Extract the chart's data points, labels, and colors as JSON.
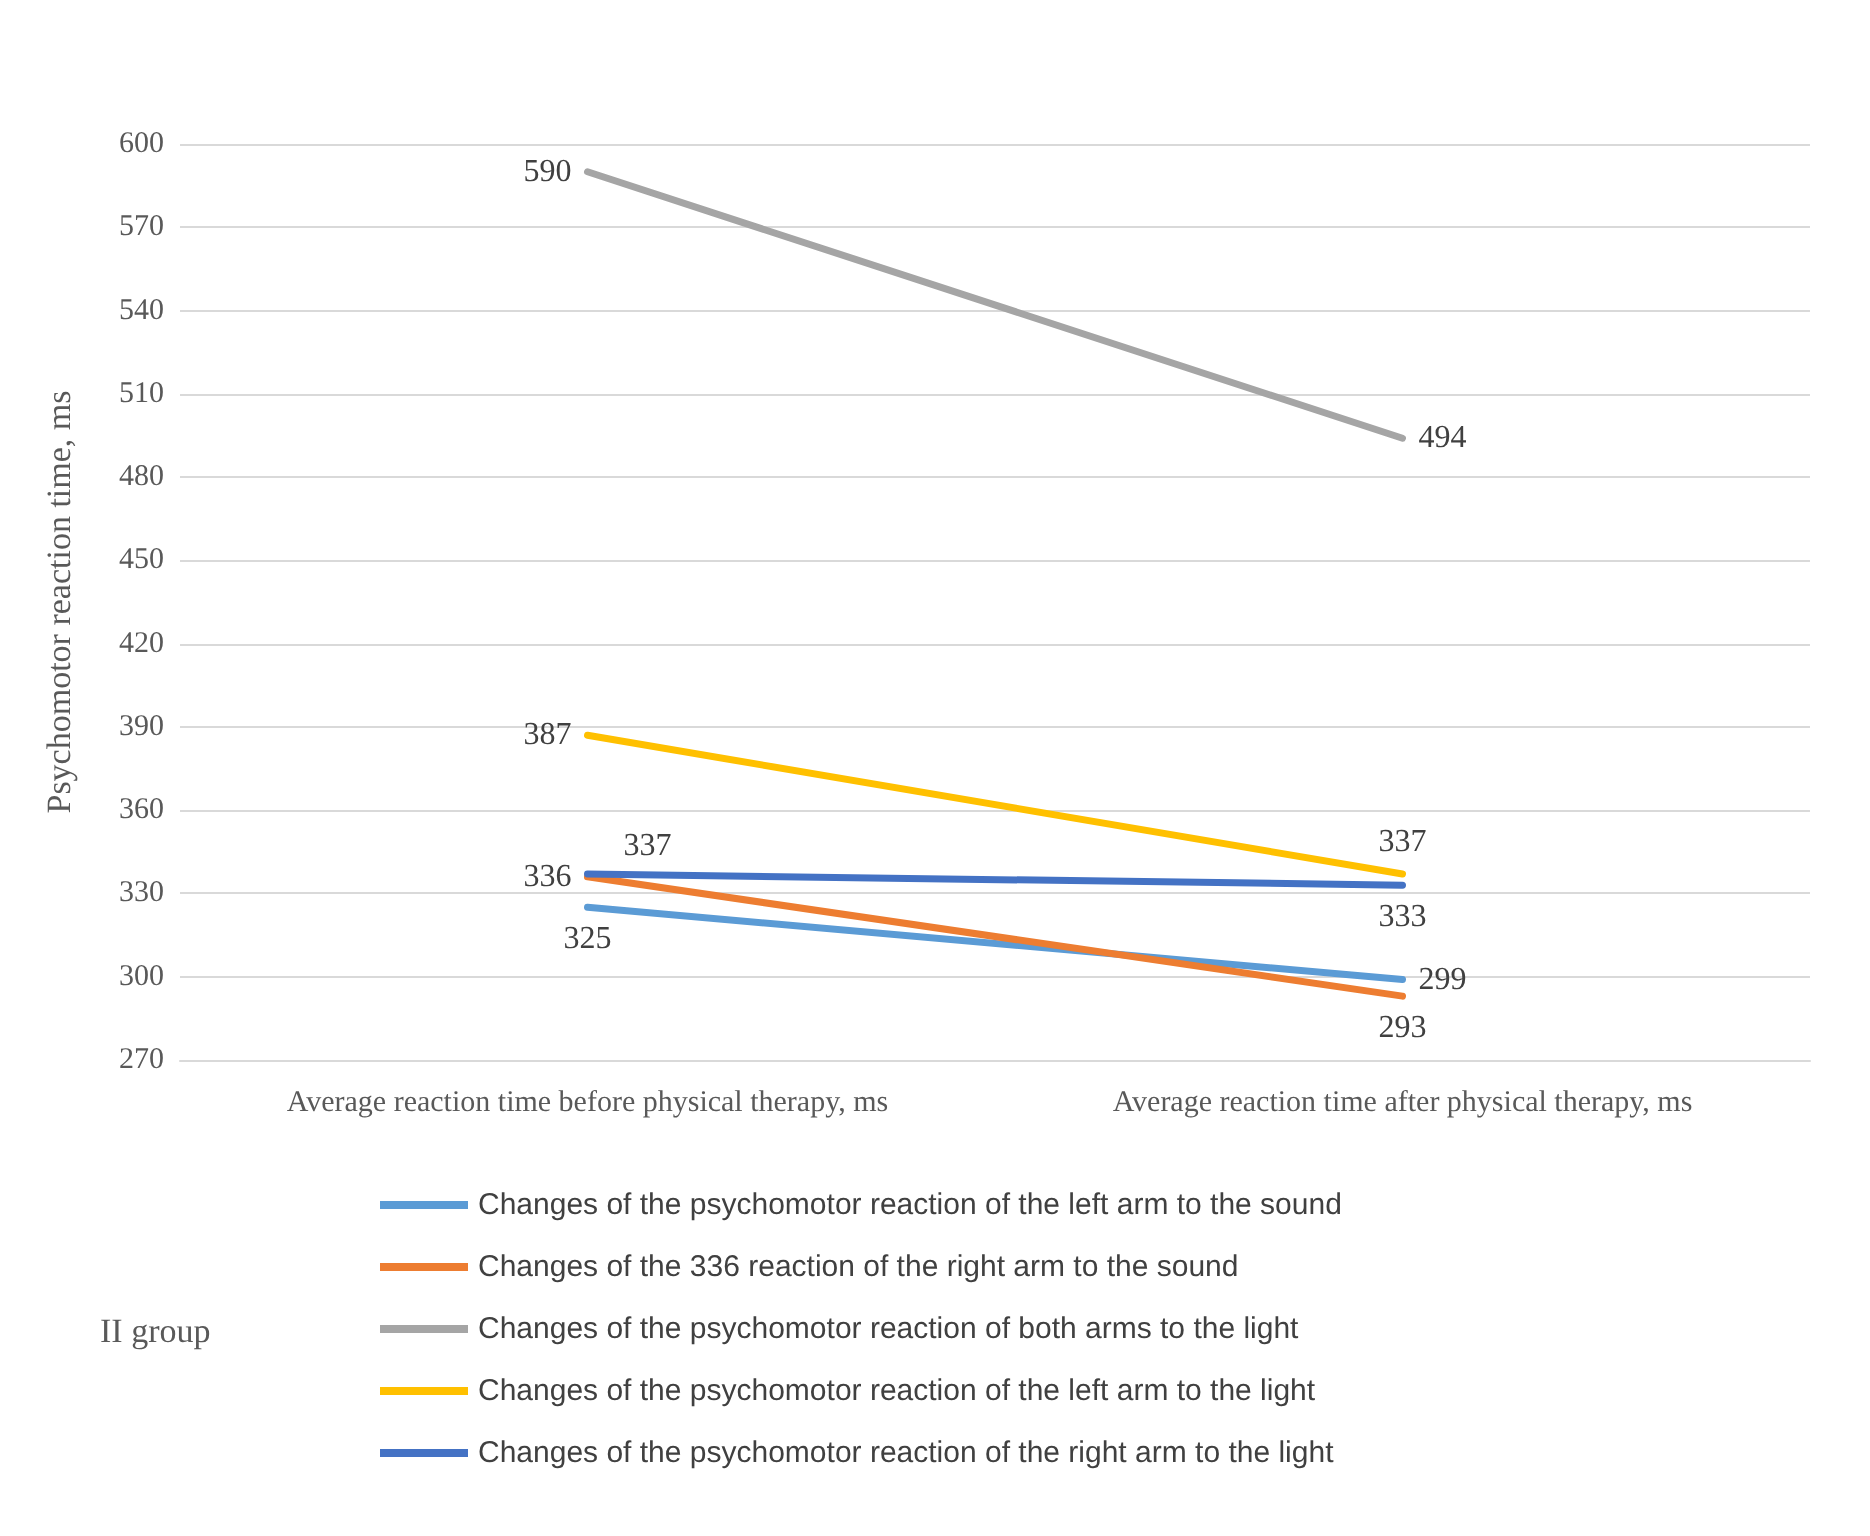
{
  "chart_data": {
    "type": "line",
    "ylabel": "Psychomotor reaction time, ms",
    "legend_title": "II group",
    "categories": [
      "Average reaction time before physical therapy, ms",
      "Average reaction time after physical therapy, ms"
    ],
    "series": [
      {
        "name": "Changes of the psychomotor reaction of the left arm to the sound",
        "color": "#5b9bd5",
        "values": [
          325,
          299
        ]
      },
      {
        "name": "Changes of the 336 reaction of the right arm to the sound",
        "color": "#ed7d31",
        "values": [
          336,
          293
        ]
      },
      {
        "name": "Changes of the psychomotor reaction of both arms to the light",
        "color": "#a5a5a5",
        "values": [
          590,
          494
        ]
      },
      {
        "name": "Changes of the psychomotor reaction of the left arm to the light",
        "color": "#ffc000",
        "values": [
          387,
          337
        ]
      },
      {
        "name": "Changes of the psychomotor reaction of the right arm to the light",
        "color": "#4472c4",
        "values": [
          337,
          333
        ]
      }
    ],
    "ylim": [
      270,
      600
    ],
    "yticks": [
      270,
      300,
      330,
      360,
      390,
      420,
      450,
      480,
      510,
      540,
      570,
      600
    ],
    "grid": "y",
    "legend": "bottom",
    "marker": "none",
    "line_style": "solid",
    "data_labels": true
  }
}
